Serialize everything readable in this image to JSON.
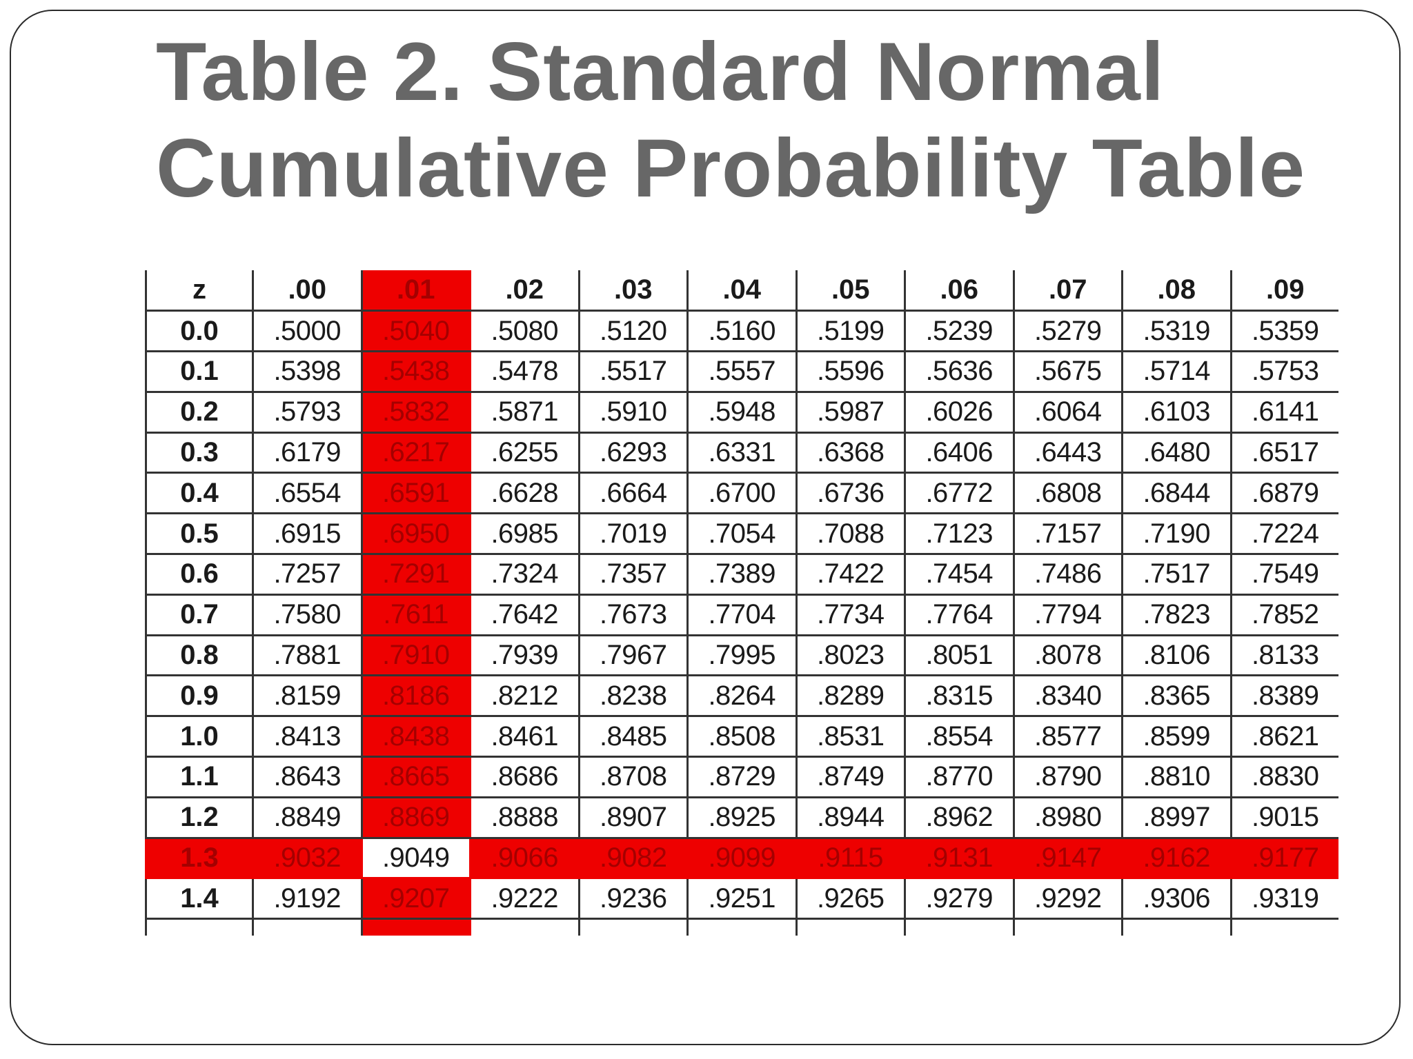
{
  "title": {
    "line1": "Table 2. Standard Normal",
    "line2": "Cumulative Probability Table"
  },
  "colors": {
    "title": "#676767",
    "highlight": "#ee0000",
    "highlight_text": "#a40000",
    "grid": "#333333"
  },
  "table": {
    "corner_header": "z",
    "column_headers": [
      ".00",
      ".01",
      ".02",
      ".03",
      ".04",
      ".05",
      ".06",
      ".07",
      ".08",
      ".09"
    ],
    "highlighted_column": ".01",
    "highlighted_row": "1.3",
    "rows": [
      {
        "z": "0.0",
        "values": [
          ".5000",
          ".5040",
          ".5080",
          ".5120",
          ".5160",
          ".5199",
          ".5239",
          ".5279",
          ".5319",
          ".5359"
        ]
      },
      {
        "z": "0.1",
        "values": [
          ".5398",
          ".5438",
          ".5478",
          ".5517",
          ".5557",
          ".5596",
          ".5636",
          ".5675",
          ".5714",
          ".5753"
        ]
      },
      {
        "z": "0.2",
        "values": [
          ".5793",
          ".5832",
          ".5871",
          ".5910",
          ".5948",
          ".5987",
          ".6026",
          ".6064",
          ".6103",
          ".6141"
        ]
      },
      {
        "z": "0.3",
        "values": [
          ".6179",
          ".6217",
          ".6255",
          ".6293",
          ".6331",
          ".6368",
          ".6406",
          ".6443",
          ".6480",
          ".6517"
        ]
      },
      {
        "z": "0.4",
        "values": [
          ".6554",
          ".6591",
          ".6628",
          ".6664",
          ".6700",
          ".6736",
          ".6772",
          ".6808",
          ".6844",
          ".6879"
        ]
      },
      {
        "z": "0.5",
        "values": [
          ".6915",
          ".6950",
          ".6985",
          ".7019",
          ".7054",
          ".7088",
          ".7123",
          ".7157",
          ".7190",
          ".7224"
        ]
      },
      {
        "z": "0.6",
        "values": [
          ".7257",
          ".7291",
          ".7324",
          ".7357",
          ".7389",
          ".7422",
          ".7454",
          ".7486",
          ".7517",
          ".7549"
        ]
      },
      {
        "z": "0.7",
        "values": [
          ".7580",
          ".7611",
          ".7642",
          ".7673",
          ".7704",
          ".7734",
          ".7764",
          ".7794",
          ".7823",
          ".7852"
        ]
      },
      {
        "z": "0.8",
        "values": [
          ".7881",
          ".7910",
          ".7939",
          ".7967",
          ".7995",
          ".8023",
          ".8051",
          ".8078",
          ".8106",
          ".8133"
        ]
      },
      {
        "z": "0.9",
        "values": [
          ".8159",
          ".8186",
          ".8212",
          ".8238",
          ".8264",
          ".8289",
          ".8315",
          ".8340",
          ".8365",
          ".8389"
        ]
      },
      {
        "z": "1.0",
        "values": [
          ".8413",
          ".8438",
          ".8461",
          ".8485",
          ".8508",
          ".8531",
          ".8554",
          ".8577",
          ".8599",
          ".8621"
        ]
      },
      {
        "z": "1.1",
        "values": [
          ".8643",
          ".8665",
          ".8686",
          ".8708",
          ".8729",
          ".8749",
          ".8770",
          ".8790",
          ".8810",
          ".8830"
        ]
      },
      {
        "z": "1.2",
        "values": [
          ".8849",
          ".8869",
          ".8888",
          ".8907",
          ".8925",
          ".8944",
          ".8962",
          ".8980",
          ".8997",
          ".9015"
        ]
      },
      {
        "z": "1.3",
        "values": [
          ".9032",
          ".9049",
          ".9066",
          ".9082",
          ".9099",
          ".9115",
          ".9131",
          ".9147",
          ".9162",
          ".9177"
        ]
      },
      {
        "z": "1.4",
        "values": [
          ".9192",
          ".9207",
          ".9222",
          ".9236",
          ".9251",
          ".9265",
          ".9279",
          ".9292",
          ".9306",
          ".9319"
        ]
      }
    ]
  }
}
